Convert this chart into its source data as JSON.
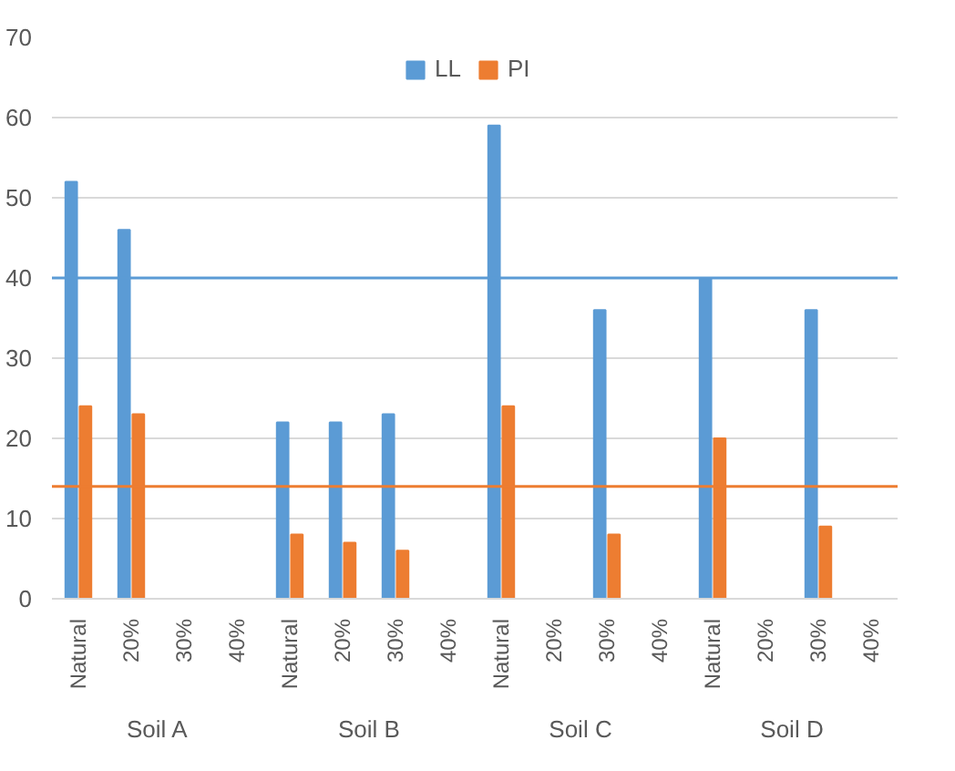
{
  "chart_data": {
    "type": "bar",
    "categories": [
      "Natural",
      "20%",
      "30%",
      "40%",
      "Natural",
      "20%",
      "30%",
      "40%",
      "Natural",
      "20%",
      "30%",
      "40%",
      "Natural",
      "20%",
      "30%",
      "40%"
    ],
    "series": [
      {
        "name": "LL",
        "color": "#5b9bd5",
        "values": [
          52,
          46,
          null,
          null,
          22,
          22,
          23,
          null,
          59,
          null,
          36,
          null,
          40,
          null,
          36,
          null
        ]
      },
      {
        "name": "PI",
        "color": "#ed7d31",
        "values": [
          24,
          23,
          null,
          null,
          8,
          7,
          6,
          null,
          24,
          null,
          8,
          null,
          20,
          null,
          9,
          null
        ]
      }
    ],
    "annotations": [
      "Soil A",
      "Soil B",
      "Soil C",
      "Soil D"
    ],
    "ref_lines": [
      {
        "axis": "y",
        "value": 40,
        "color": "#5b9bd5"
      },
      {
        "axis": "y",
        "value": 14,
        "color": "#ed7d31"
      }
    ],
    "ylim": [
      0,
      70
    ],
    "yticks": [
      0,
      10,
      20,
      30,
      40,
      50,
      60,
      70
    ],
    "grid": "y",
    "legend": "top"
  }
}
